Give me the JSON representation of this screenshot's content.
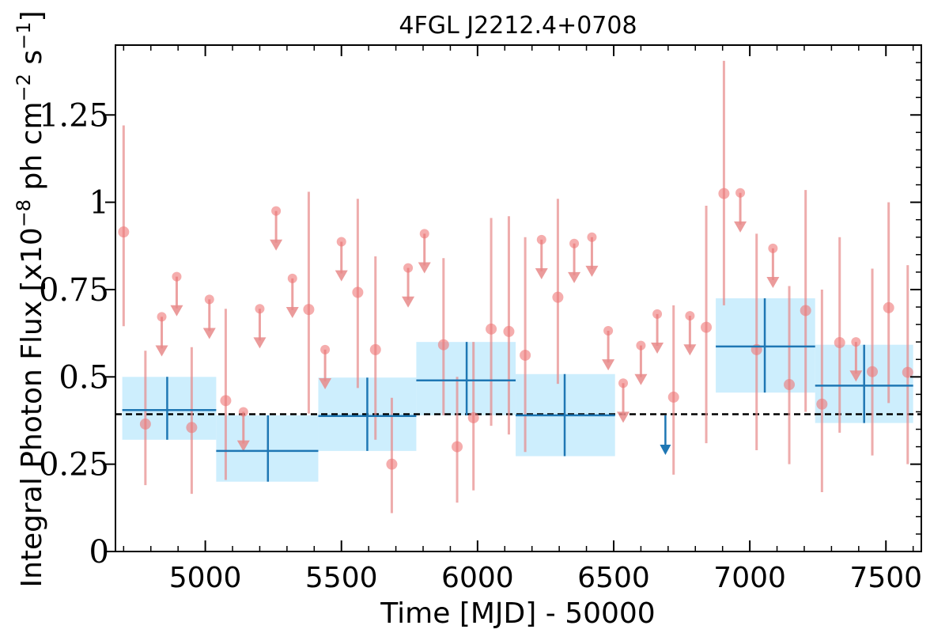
{
  "chart_data": {
    "type": "scatter",
    "title": "4FGL J2212.4+0708",
    "xlabel": "Time [MJD] - 50000",
    "ylabel_main": "Integral Photon Flux [x10",
    "ylabel_exp1": "−8",
    "ylabel_mid": " ph cm",
    "ylabel_exp2": "−2",
    "ylabel_s": " s",
    "ylabel_exp3": "−1",
    "ylabel_end": "]",
    "xlim": [
      4670,
      7630
    ],
    "ylim": [
      0,
      1.45
    ],
    "xticks": [
      5000,
      5500,
      6000,
      6500,
      7000,
      7500
    ],
    "xtick_labels": [
      "5000",
      "5500",
      "6000",
      "6500",
      "7000",
      "7500"
    ],
    "yticks": [
      0,
      0.25,
      0.5,
      0.75,
      1,
      1.25
    ],
    "ytick_labels": [
      "0",
      "0.25",
      "0.5",
      "0.75",
      "1",
      "1.25"
    ],
    "mean_flux": 0.393,
    "colors": {
      "short_bin": "#e88a8a",
      "long_bin": "#1f77b4",
      "long_band": "#cdeefd",
      "mean_line": "#000000"
    },
    "short_bins": {
      "name": "",
      "detections": [
        {
          "x": 4700,
          "y": 0.915,
          "ylo": 0.645,
          "yhi": 1.22
        },
        {
          "x": 4780,
          "y": 0.365,
          "ylo": 0.19,
          "yhi": 0.575
        },
        {
          "x": 4950,
          "y": 0.355,
          "ylo": 0.165,
          "yhi": 0.585
        },
        {
          "x": 5075,
          "y": 0.432,
          "ylo": 0.205,
          "yhi": 0.695
        },
        {
          "x": 5380,
          "y": 0.693,
          "ylo": 0.395,
          "yhi": 1.03
        },
        {
          "x": 5560,
          "y": 0.742,
          "ylo": 0.468,
          "yhi": 1.01
        },
        {
          "x": 5625,
          "y": 0.578,
          "ylo": 0.32,
          "yhi": 0.845
        },
        {
          "x": 5685,
          "y": 0.25,
          "ylo": 0.11,
          "yhi": 0.44
        },
        {
          "x": 5875,
          "y": 0.592,
          "ylo": 0.39,
          "yhi": 0.84
        },
        {
          "x": 5925,
          "y": 0.3,
          "ylo": 0.14,
          "yhi": 0.5
        },
        {
          "x": 5985,
          "y": 0.383,
          "ylo": 0.175,
          "yhi": 0.6
        },
        {
          "x": 6050,
          "y": 0.637,
          "ylo": 0.36,
          "yhi": 0.955
        },
        {
          "x": 6115,
          "y": 0.63,
          "ylo": 0.335,
          "yhi": 0.96
        },
        {
          "x": 6175,
          "y": 0.562,
          "ylo": 0.285,
          "yhi": 0.9
        },
        {
          "x": 6295,
          "y": 0.728,
          "ylo": 0.48,
          "yhi": 1.01
        },
        {
          "x": 6720,
          "y": 0.442,
          "ylo": 0.22,
          "yhi": 0.705
        },
        {
          "x": 6840,
          "y": 0.642,
          "ylo": 0.31,
          "yhi": 0.99
        },
        {
          "x": 6905,
          "y": 1.025,
          "ylo": 0.705,
          "yhi": 1.405
        },
        {
          "x": 7025,
          "y": 0.578,
          "ylo": 0.29,
          "yhi": 0.91
        },
        {
          "x": 7145,
          "y": 0.478,
          "ylo": 0.25,
          "yhi": 0.76
        },
        {
          "x": 7205,
          "y": 0.69,
          "ylo": 0.4,
          "yhi": 1.035
        },
        {
          "x": 7265,
          "y": 0.422,
          "ylo": 0.17,
          "yhi": 0.75
        },
        {
          "x": 7330,
          "y": 0.598,
          "ylo": 0.34,
          "yhi": 0.9
        },
        {
          "x": 7450,
          "y": 0.515,
          "ylo": 0.275,
          "yhi": 0.81
        },
        {
          "x": 7510,
          "y": 0.698,
          "ylo": 0.425,
          "yhi": 1.0
        },
        {
          "x": 7580,
          "y": 0.513,
          "ylo": 0.25,
          "yhi": 0.82
        }
      ],
      "upper_limits": [
        {
          "x": 4840,
          "y": 0.672
        },
        {
          "x": 4895,
          "y": 0.787
        },
        {
          "x": 5015,
          "y": 0.722
        },
        {
          "x": 5140,
          "y": 0.4
        },
        {
          "x": 5200,
          "y": 0.695
        },
        {
          "x": 5260,
          "y": 0.975
        },
        {
          "x": 5320,
          "y": 0.782
        },
        {
          "x": 5440,
          "y": 0.578
        },
        {
          "x": 5500,
          "y": 0.887
        },
        {
          "x": 5745,
          "y": 0.812
        },
        {
          "x": 5805,
          "y": 0.91
        },
        {
          "x": 6235,
          "y": 0.893
        },
        {
          "x": 6355,
          "y": 0.882
        },
        {
          "x": 6420,
          "y": 0.9
        },
        {
          "x": 6480,
          "y": 0.632
        },
        {
          "x": 6535,
          "y": 0.482
        },
        {
          "x": 6600,
          "y": 0.59
        },
        {
          "x": 6660,
          "y": 0.68
        },
        {
          "x": 6780,
          "y": 0.675
        },
        {
          "x": 6965,
          "y": 1.027
        },
        {
          "x": 7085,
          "y": 0.868
        },
        {
          "x": 7390,
          "y": 0.6
        }
      ]
    },
    "long_bins": {
      "name": "",
      "detections": [
        {
          "x0": 4695,
          "x1": 5040,
          "xc": 4860,
          "y": 0.405,
          "ylo": 0.32,
          "yhi": 0.5
        },
        {
          "x0": 5040,
          "x1": 5415,
          "xc": 5230,
          "y": 0.288,
          "ylo": 0.2,
          "yhi": 0.39
        },
        {
          "x0": 5415,
          "x1": 5775,
          "xc": 5595,
          "y": 0.388,
          "ylo": 0.288,
          "yhi": 0.498
        },
        {
          "x0": 5775,
          "x1": 6140,
          "xc": 5960,
          "y": 0.49,
          "ylo": 0.39,
          "yhi": 0.6
        },
        {
          "x0": 6140,
          "x1": 6505,
          "xc": 6320,
          "y": 0.39,
          "ylo": 0.273,
          "yhi": 0.508
        },
        {
          "x0": 6875,
          "x1": 7240,
          "xc": 7055,
          "y": 0.587,
          "ylo": 0.455,
          "yhi": 0.725
        },
        {
          "x0": 7240,
          "x1": 7600,
          "xc": 7420,
          "y": 0.475,
          "ylo": 0.368,
          "yhi": 0.592
        }
      ],
      "upper_limits": [
        {
          "x": 6690,
          "y": 0.39
        }
      ]
    }
  }
}
